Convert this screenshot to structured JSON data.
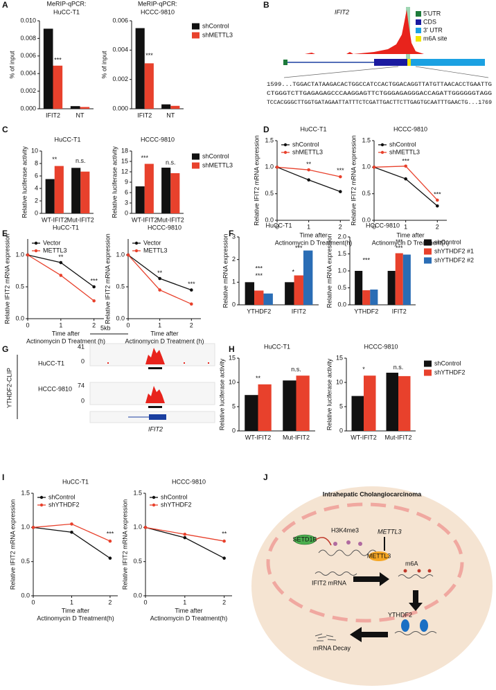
{
  "panel_letters": [
    "A",
    "B",
    "C",
    "D",
    "E",
    "F",
    "G",
    "H",
    "I",
    "J"
  ],
  "chart_data": [
    {
      "type": "bar",
      "title": "MeRIP-qPCR:",
      "subtitle": "HuCC-T1",
      "ylabel": "% of input",
      "categories": [
        "IFIT2",
        "NT"
      ],
      "series": [
        {
          "color": "#111111",
          "values": [
            0.0091,
            0.0003
          ]
        },
        {
          "color": "#e8412c",
          "values": [
            0.0049,
            0.0002
          ]
        }
      ],
      "ylim": [
        0,
        0.01
      ],
      "yticks": [
        {
          "value": 0,
          "label": "0.000"
        },
        {
          "value": 0.002,
          "label": "0.002"
        },
        {
          "value": 0.004,
          "label": "0.004"
        },
        {
          "value": 0.006,
          "label": "0.006"
        },
        {
          "value": 0.008,
          "label": "0.008"
        },
        {
          "value": 0.01,
          "label": "0.010"
        }
      ],
      "annotations": [
        "***"
      ]
    },
    {
      "type": "bar",
      "title": "MeRIP-qPCR:",
      "subtitle": "HCCC-9810",
      "ylabel": "% of input",
      "categories": [
        "IFIT2",
        "NT"
      ],
      "series": [
        {
          "name": "shControl",
          "color": "#111111",
          "values": [
            0.0055,
            0.0003
          ]
        },
        {
          "name": "shMETTL3",
          "color": "#e8412c",
          "values": [
            0.0031,
            0.0002
          ]
        }
      ],
      "ylim": [
        0,
        0.006
      ],
      "yticks": [
        {
          "value": 0,
          "label": "0.000"
        },
        {
          "value": 0.002,
          "label": "0.002"
        },
        {
          "value": 0.004,
          "label": "0.004"
        },
        {
          "value": 0.006,
          "label": "0.006"
        }
      ],
      "legend": "right",
      "annotations": [
        "***"
      ]
    },
    {
      "type": "bar",
      "title": "HuCC-T1",
      "ylabel": "Relative luciferase activity",
      "categories": [
        "WT-IFIT2",
        "Mut-IFIT2"
      ],
      "series": [
        {
          "color": "#111111",
          "values": [
            5.5,
            7.3
          ]
        },
        {
          "color": "#e8412c",
          "values": [
            7.6,
            6.7
          ]
        }
      ],
      "ylim": [
        0,
        10
      ],
      "yticks": [
        0,
        2,
        4,
        6,
        8,
        10
      ],
      "annotations": [
        "**",
        "n.s."
      ]
    },
    {
      "type": "bar",
      "title": "HCCC-9810",
      "ylabel": "Relative luciferase activity",
      "categories": [
        "WT-IFIT2",
        "Mut-IFIT2"
      ],
      "series": [
        {
          "name": "shControl",
          "color": "#111111",
          "values": [
            7.8,
            13.2
          ]
        },
        {
          "name": "shMETTL3",
          "color": "#e8412c",
          "values": [
            14.3,
            11.6
          ]
        }
      ],
      "ylim": [
        0,
        18
      ],
      "yticks": [
        0,
        3,
        6,
        9,
        12,
        15,
        18
      ],
      "legend": "right",
      "annotations": [
        "***",
        "n.s."
      ]
    },
    {
      "type": "line",
      "title": "HuCC-T1",
      "ylabel": "Relative IFIT2 mRNA expression",
      "xlabel": [
        "Time after",
        "Actinomycin D Treatment(h)"
      ],
      "x": [
        0,
        1,
        2
      ],
      "xlim": [
        0,
        2.3
      ],
      "xticks": [
        0,
        1,
        2
      ],
      "series": [
        {
          "name": "shControl",
          "color": "#111111",
          "values": [
            1.0,
            0.76,
            0.54
          ]
        },
        {
          "name": "shMETTL3",
          "color": "#e8412c",
          "values": [
            1.0,
            0.95,
            0.82
          ]
        }
      ],
      "ylim": [
        0,
        1.5
      ],
      "yticks": [
        {
          "value": 0,
          "label": "0.0"
        },
        0.5,
        {
          "value": 1,
          "label": "1.0"
        },
        1.5
      ],
      "legend": "upper left",
      "annotations": [
        "**",
        "***"
      ]
    },
    {
      "type": "line",
      "title": "HCCC-9810",
      "ylabel": "Relative IFIT2 mRNA expression",
      "xlabel": [
        "Time after",
        "Actinomycin D Treatment(h)"
      ],
      "x": [
        0,
        1,
        2
      ],
      "xlim": [
        0,
        2.3
      ],
      "xticks": [
        0,
        1,
        2
      ],
      "series": [
        {
          "name": "shControl",
          "color": "#111111",
          "values": [
            1.0,
            0.78,
            0.27
          ]
        },
        {
          "name": "shMETTL3",
          "color": "#e8412c",
          "values": [
            1.0,
            1.02,
            0.38
          ]
        }
      ],
      "ylim": [
        0,
        1.5
      ],
      "yticks": [
        {
          "value": 0,
          "label": "0.0"
        },
        0.5,
        {
          "value": 1,
          "label": "1.0"
        },
        1.5
      ],
      "legend": "upper left",
      "annotations": [
        "***",
        "***"
      ]
    },
    {
      "type": "line",
      "title": "HuCC-T1",
      "ylabel": "Relative IFIT2 mRNA expression",
      "xlabel": [
        "Time after",
        "Actinomycin D Treatment (h)"
      ],
      "x": [
        0,
        1,
        2
      ],
      "xlim": [
        0,
        2.3
      ],
      "xticks": [
        0,
        1,
        2
      ],
      "series": [
        {
          "name": "Vector",
          "color": "#111111",
          "values": [
            1.0,
            0.88,
            0.5
          ]
        },
        {
          "name": "METTL3",
          "color": "#e8412c",
          "values": [
            1.0,
            0.68,
            0.28
          ]
        }
      ],
      "ylim": [
        0,
        1.25
      ],
      "yticks": [
        {
          "value": 0,
          "label": "0.0"
        },
        0.5,
        {
          "value": 1,
          "label": "1.0"
        }
      ],
      "legend": "upper left",
      "annotations": [
        "**",
        "***"
      ]
    },
    {
      "type": "line",
      "title": "HCCC-9810",
      "ylabel": "Relative IFIT2 mRNA expression",
      "xlabel": [
        "Time after",
        "Actinomycin D Treatment (h)"
      ],
      "x": [
        0,
        1,
        2
      ],
      "xlim": [
        0,
        2.3
      ],
      "xticks": [
        0,
        1,
        2
      ],
      "series": [
        {
          "name": "Vector",
          "color": "#111111",
          "values": [
            1.0,
            0.63,
            0.45
          ]
        },
        {
          "name": "METTL3",
          "color": "#e8412c",
          "values": [
            1.0,
            0.45,
            0.23
          ]
        }
      ],
      "ylim": [
        0,
        1.25
      ],
      "yticks": [
        {
          "value": 0,
          "label": "0.0"
        },
        0.5,
        {
          "value": 1,
          "label": "1.0"
        }
      ],
      "legend": "upper left",
      "annotations": [
        "**",
        "***"
      ]
    },
    {
      "type": "bar",
      "title": "HuCC-T1",
      "ylabel": "Relative mRNA expression",
      "categories": [
        "YTHDF2",
        "IFIT2"
      ],
      "series": [
        {
          "color": "#111111",
          "values": [
            1.0,
            1.0
          ]
        },
        {
          "color": "#e8412c",
          "values": [
            0.63,
            1.3
          ]
        },
        {
          "color": "#2a6db5",
          "values": [
            0.5,
            2.4
          ]
        }
      ],
      "ylim": [
        0,
        3
      ],
      "yticks": [
        0,
        1,
        2,
        3
      ],
      "annotations": [
        "***",
        "***",
        "*",
        "***"
      ]
    },
    {
      "type": "bar",
      "title": "HCCC-9810",
      "ylabel": "Relative mRNA expression",
      "categories": [
        "YTHDF2",
        "IFIT2"
      ],
      "series": [
        {
          "name": "shControl",
          "color": "#111111",
          "values": [
            1.0,
            1.0
          ]
        },
        {
          "name": "shYTHDF2 #1",
          "color": "#e8412c",
          "values": [
            0.43,
            1.52
          ]
        },
        {
          "name": "shYTHDF2 #2",
          "color": "#2a6db5",
          "values": [
            0.45,
            1.48
          ]
        }
      ],
      "ylim": [
        0,
        2
      ],
      "yticks": [
        {
          "value": 0,
          "label": "0.0"
        },
        0.5,
        {
          "value": 1,
          "label": "1.0"
        },
        1.5,
        {
          "value": 2,
          "label": "2.0"
        }
      ],
      "legend": "right",
      "annotations": [
        "***",
        "***",
        "***"
      ]
    },
    {
      "type": "bar",
      "title": "HuCC-T1",
      "ylabel": "Relative luciferase activity",
      "categories": [
        "WT-IFIT2",
        "Mut-IFIT2"
      ],
      "series": [
        {
          "color": "#111111",
          "values": [
            7.4,
            10.4
          ]
        },
        {
          "color": "#e8412c",
          "values": [
            9.6,
            11.4
          ]
        }
      ],
      "ylim": [
        0,
        15
      ],
      "yticks": [
        0,
        5,
        10,
        15
      ],
      "annotations": [
        "**",
        "n.s."
      ]
    },
    {
      "type": "bar",
      "title": "HCCC-9810",
      "ylabel": "Relative luciferase activity",
      "categories": [
        "WT-IFIT2",
        "Mut-IFIT2"
      ],
      "series": [
        {
          "name": "shControl",
          "color": "#111111",
          "values": [
            7.2,
            12.0
          ]
        },
        {
          "name": "shYTHDF2",
          "color": "#e8412c",
          "values": [
            11.4,
            11.3
          ]
        }
      ],
      "ylim": [
        0,
        15
      ],
      "yticks": [
        0,
        5,
        10,
        15
      ],
      "legend": "right",
      "annotations": [
        "*",
        "n.s."
      ]
    },
    {
      "type": "line",
      "title": "HuCC-T1",
      "ylabel": "Relative IFIT2 mRNA expression",
      "xlabel": [
        "Time after",
        "Actinomycin D Treatment(h)"
      ],
      "x": [
        0,
        1,
        2
      ],
      "xlim": [
        0,
        2.2
      ],
      "xticks": [
        0,
        1,
        2
      ],
      "series": [
        {
          "name": "shControl",
          "color": "#111111",
          "values": [
            1.0,
            0.93,
            0.55
          ]
        },
        {
          "name": "shYTHDF2",
          "color": "#e8412c",
          "values": [
            1.0,
            1.05,
            0.8
          ]
        }
      ],
      "ylim": [
        0,
        1.5
      ],
      "yticks": [
        {
          "value": 0,
          "label": "0.0"
        },
        0.5,
        {
          "value": 1,
          "label": "1.0"
        },
        1.5
      ],
      "legend": "upper left",
      "annotations": [
        "***"
      ]
    },
    {
      "type": "line",
      "title": "HCCC-9810",
      "ylabel": "Relative IFIT2 mRNA expression",
      "xlabel": [
        "Time after",
        "Actinomycin D Treatment(h)"
      ],
      "x": [
        0,
        1,
        2
      ],
      "xlim": [
        0,
        2.2
      ],
      "xticks": [
        0,
        1,
        2
      ],
      "series": [
        {
          "name": "shControl",
          "color": "#111111",
          "values": [
            1.0,
            0.85,
            0.55
          ]
        },
        {
          "name": "shYTHDF2",
          "color": "#e8412c",
          "values": [
            1.0,
            0.9,
            0.8
          ]
        }
      ],
      "ylim": [
        0,
        1.5
      ],
      "yticks": [
        {
          "value": 0,
          "label": "0.0"
        },
        0.5,
        {
          "value": 1,
          "label": "1.0"
        },
        1.5
      ],
      "legend": "upper left",
      "annotations": [
        "**"
      ]
    }
  ],
  "panel_b": {
    "gene": "IFIT2",
    "legend": [
      "5'UTR",
      "CDS",
      "3' UTR",
      "m6A site"
    ],
    "sequence": [
      "1599...TGGACTATAAGACACTGGCCATCCACTGGACAGGTTATGTTAACACCTGAATTG",
      "CTGGGTCTTGAGAGAGCCCAAGGAGTTCTGGGAGAGGGACCAGATTGGGGGGTAGG",
      "TCCACGGGCTTGGTGATAGAATTATTTCTCGATTGACTTCTTGAGTGCAATTTGAACTG...1769"
    ]
  },
  "panel_g": {
    "scale": "5kb",
    "track_label": "YTHDF2-CLIP",
    "tracks": [
      {
        "name": "HuCC-T1",
        "max": 41,
        "min": 0
      },
      {
        "name": "HCCC-9810",
        "max": 74,
        "min": 0
      }
    ],
    "gene": "IFIT2"
  },
  "panel_j": {
    "title": "Intrahepatic Cholangiocarcinoma",
    "labels": [
      "SETD1B",
      "H3K4me3",
      "METTL3",
      "METTL3",
      "m6A",
      "IFIT2 mRNA",
      "YTHDF2",
      "mRNA Decay"
    ]
  }
}
